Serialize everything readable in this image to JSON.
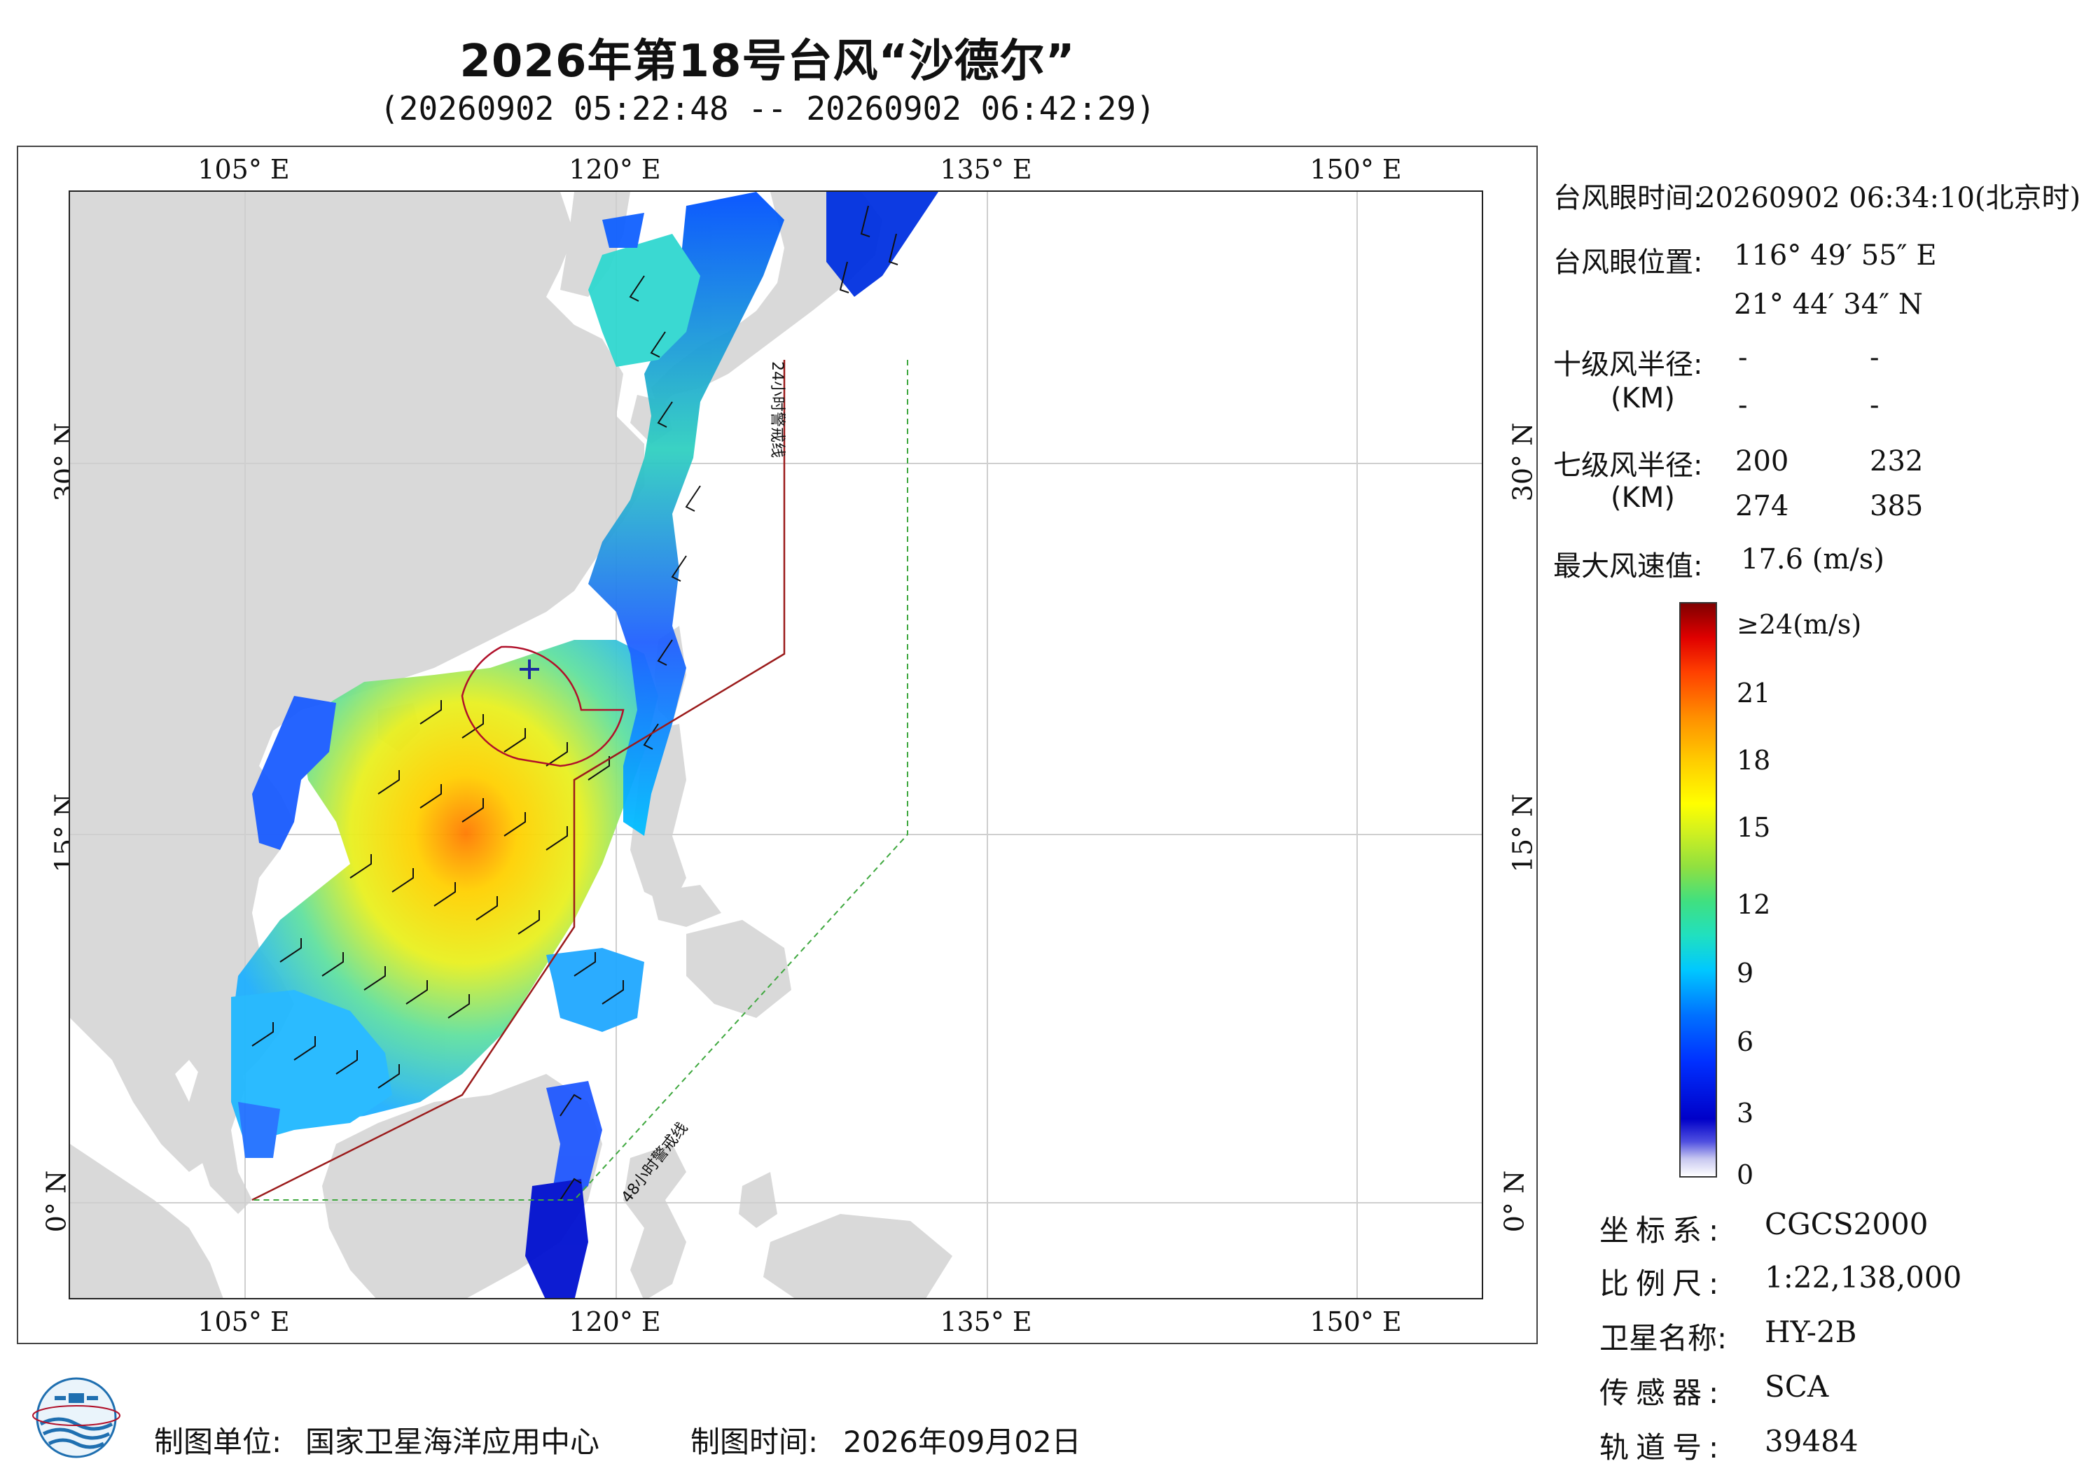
{
  "title": "2026年第18号台风“沙德尔”",
  "subtitle": "(20260902 05:22:48 -- 20260902 06:42:29)",
  "axes": {
    "lon_labels": [
      "105° E",
      "120° E",
      "135° E",
      "150° E"
    ],
    "lat_labels": [
      "30° N",
      "15° N",
      "0° N"
    ]
  },
  "warning_lines": {
    "line24_label": "24小时警戒线",
    "line48_label": "48小时警戒线",
    "line24_color": "#9b1b1b",
    "line48_color": "#3fa83f"
  },
  "info": {
    "eye_time_label": "台风眼时间:",
    "eye_time_value": "20260902 06:34:10(北京时)",
    "eye_pos_label": "台风眼位置:",
    "eye_lon": "116° 49′ 55″ E",
    "eye_lat": "21° 44′ 34″ N",
    "r10_label": "十级风半径:",
    "r10_unit": "(KM)",
    "r10_values": [
      "-",
      "-",
      "-",
      "-"
    ],
    "r7_label": "七级风半径:",
    "r7_unit": "(KM)",
    "r7_values": [
      "200",
      "232",
      "274",
      "385"
    ],
    "max_wind_label": "最大风速值:",
    "max_wind_value": "17.6  (m/s)"
  },
  "colorbar": {
    "ticks": [
      "≥24(m/s)",
      "21",
      "18",
      "15",
      "12",
      "9",
      "6",
      "3",
      "0"
    ]
  },
  "meta": {
    "crs_label": "坐标系:",
    "crs_value": "CGCS2000",
    "scale_label": "比例尺:",
    "scale_value": "1:22,138,000",
    "sat_label": "卫星名称:",
    "sat_value": "HY-2B",
    "sensor_label": "传感器:",
    "sensor_value": "SCA",
    "orbit_label": "轨道号:",
    "orbit_value": "39484"
  },
  "footer": {
    "unit_label": "制图单位:",
    "unit_value": "国家卫星海洋应用中心",
    "time_label": "制图时间:",
    "time_value": "2026年09月02日"
  },
  "colors": {
    "land": "#d9d9d9",
    "ocean": "#ffffff",
    "grid": "#cfcfcf",
    "wind_high": "#ffff00",
    "wind_low": "#0030ff"
  }
}
